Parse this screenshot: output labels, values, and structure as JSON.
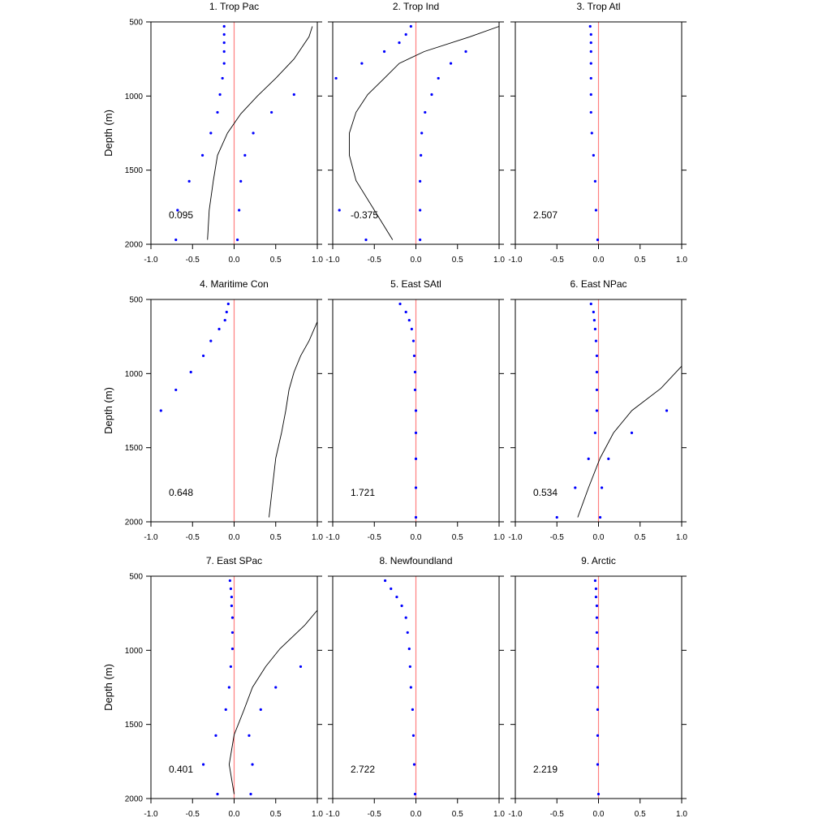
{
  "axes": {
    "ylabel": "Depth (m)",
    "ylim": [
      500,
      2000
    ],
    "xlim": [
      -1.0,
      1.0
    ],
    "y_ticks": [
      500,
      1000,
      1500,
      2000
    ],
    "x_ticks": [
      -1.0,
      -0.5,
      0.0,
      0.5,
      1.0
    ],
    "x_tick_labels": [
      "-1.0",
      "-0.5",
      "0.0",
      "0.5",
      "1.0"
    ],
    "y_inverted": true
  },
  "colors": {
    "points": "#0000ff",
    "curve": "#000000",
    "zero_line": "#ff8080"
  },
  "chart_data": [
    {
      "type": "scatter",
      "title": "1. Trop Pac",
      "annotation": "0.095",
      "points": [
        {
          "x": -0.12,
          "y": 530
        },
        {
          "x": -0.12,
          "y": 585
        },
        {
          "x": -0.12,
          "y": 640
        },
        {
          "x": -0.12,
          "y": 700
        },
        {
          "x": -0.12,
          "y": 780
        },
        {
          "x": -0.14,
          "y": 880
        },
        {
          "x": -0.17,
          "y": 990
        },
        {
          "x": -0.2,
          "y": 1110
        },
        {
          "x": -0.28,
          "y": 1250
        },
        {
          "x": -0.38,
          "y": 1400
        },
        {
          "x": -0.54,
          "y": 1575
        },
        {
          "x": -0.68,
          "y": 1770
        },
        {
          "x": -0.7,
          "y": 1970
        },
        {
          "x": 0.72,
          "y": 990
        },
        {
          "x": 0.45,
          "y": 1110
        },
        {
          "x": 0.23,
          "y": 1250
        },
        {
          "x": 0.13,
          "y": 1400
        },
        {
          "x": 0.08,
          "y": 1575
        },
        {
          "x": 0.06,
          "y": 1770
        },
        {
          "x": 0.04,
          "y": 1970
        }
      ],
      "curve": [
        {
          "x": 0.94,
          "y": 530
        },
        {
          "x": 0.9,
          "y": 600
        },
        {
          "x": 0.72,
          "y": 750
        },
        {
          "x": 0.5,
          "y": 880
        },
        {
          "x": 0.28,
          "y": 1000
        },
        {
          "x": 0.08,
          "y": 1120
        },
        {
          "x": -0.08,
          "y": 1250
        },
        {
          "x": -0.2,
          "y": 1400
        },
        {
          "x": -0.25,
          "y": 1570
        },
        {
          "x": -0.3,
          "y": 1770
        },
        {
          "x": -0.32,
          "y": 1970
        }
      ]
    },
    {
      "type": "scatter",
      "title": "2. Trop Ind",
      "annotation": "-0.375",
      "points": [
        {
          "x": -0.06,
          "y": 530
        },
        {
          "x": -0.12,
          "y": 585
        },
        {
          "x": -0.2,
          "y": 640
        },
        {
          "x": -0.38,
          "y": 700
        },
        {
          "x": -0.65,
          "y": 780
        },
        {
          "x": -0.96,
          "y": 880
        },
        {
          "x": -0.92,
          "y": 1770
        },
        {
          "x": -0.6,
          "y": 1970
        },
        {
          "x": 0.6,
          "y": 700
        },
        {
          "x": 0.42,
          "y": 780
        },
        {
          "x": 0.27,
          "y": 880
        },
        {
          "x": 0.19,
          "y": 990
        },
        {
          "x": 0.11,
          "y": 1110
        },
        {
          "x": 0.07,
          "y": 1250
        },
        {
          "x": 0.06,
          "y": 1400
        },
        {
          "x": 0.05,
          "y": 1575
        },
        {
          "x": 0.05,
          "y": 1770
        },
        {
          "x": 0.05,
          "y": 1970
        }
      ],
      "curve": [
        {
          "x": 1.0,
          "y": 530
        },
        {
          "x": 0.65,
          "y": 600
        },
        {
          "x": 0.1,
          "y": 700
        },
        {
          "x": -0.2,
          "y": 780
        },
        {
          "x": -0.38,
          "y": 880
        },
        {
          "x": -0.58,
          "y": 990
        },
        {
          "x": -0.72,
          "y": 1110
        },
        {
          "x": -0.8,
          "y": 1250
        },
        {
          "x": -0.8,
          "y": 1400
        },
        {
          "x": -0.72,
          "y": 1570
        },
        {
          "x": -0.5,
          "y": 1770
        },
        {
          "x": -0.28,
          "y": 1970
        }
      ]
    },
    {
      "type": "scatter",
      "title": "3. Trop Atl",
      "annotation": "2.507",
      "points": [
        {
          "x": -0.1,
          "y": 530
        },
        {
          "x": -0.09,
          "y": 585
        },
        {
          "x": -0.09,
          "y": 640
        },
        {
          "x": -0.09,
          "y": 700
        },
        {
          "x": -0.09,
          "y": 780
        },
        {
          "x": -0.09,
          "y": 880
        },
        {
          "x": -0.09,
          "y": 990
        },
        {
          "x": -0.09,
          "y": 1110
        },
        {
          "x": -0.08,
          "y": 1250
        },
        {
          "x": -0.06,
          "y": 1400
        },
        {
          "x": -0.04,
          "y": 1575
        },
        {
          "x": -0.03,
          "y": 1770
        },
        {
          "x": -0.01,
          "y": 1970
        }
      ],
      "curve": []
    },
    {
      "type": "scatter",
      "title": "4. Maritime Con",
      "annotation": "0.648",
      "points": [
        {
          "x": -0.07,
          "y": 530
        },
        {
          "x": -0.09,
          "y": 585
        },
        {
          "x": -0.11,
          "y": 640
        },
        {
          "x": -0.18,
          "y": 700
        },
        {
          "x": -0.28,
          "y": 780
        },
        {
          "x": -0.37,
          "y": 880
        },
        {
          "x": -0.52,
          "y": 990
        },
        {
          "x": -0.7,
          "y": 1110
        },
        {
          "x": -0.88,
          "y": 1250
        }
      ],
      "curve": [
        {
          "x": 1.0,
          "y": 650
        },
        {
          "x": 0.9,
          "y": 780
        },
        {
          "x": 0.8,
          "y": 880
        },
        {
          "x": 0.72,
          "y": 990
        },
        {
          "x": 0.66,
          "y": 1110
        },
        {
          "x": 0.62,
          "y": 1250
        },
        {
          "x": 0.57,
          "y": 1400
        },
        {
          "x": 0.5,
          "y": 1570
        },
        {
          "x": 0.46,
          "y": 1770
        },
        {
          "x": 0.42,
          "y": 1970
        }
      ]
    },
    {
      "type": "scatter",
      "title": "5. East SAtl",
      "annotation": "1.721",
      "points": [
        {
          "x": -0.19,
          "y": 530
        },
        {
          "x": -0.12,
          "y": 585
        },
        {
          "x": -0.08,
          "y": 640
        },
        {
          "x": -0.05,
          "y": 700
        },
        {
          "x": -0.03,
          "y": 780
        },
        {
          "x": -0.02,
          "y": 880
        },
        {
          "x": -0.01,
          "y": 990
        },
        {
          "x": -0.01,
          "y": 1110
        },
        {
          "x": 0.0,
          "y": 1250
        },
        {
          "x": 0.0,
          "y": 1400
        },
        {
          "x": 0.0,
          "y": 1575
        },
        {
          "x": 0.0,
          "y": 1770
        },
        {
          "x": 0.0,
          "y": 1970
        }
      ],
      "curve": []
    },
    {
      "type": "scatter",
      "title": "6. East NPac",
      "annotation": "0.534",
      "points": [
        {
          "x": -0.09,
          "y": 530
        },
        {
          "x": -0.06,
          "y": 585
        },
        {
          "x": -0.05,
          "y": 640
        },
        {
          "x": -0.04,
          "y": 700
        },
        {
          "x": -0.03,
          "y": 780
        },
        {
          "x": -0.02,
          "y": 880
        },
        {
          "x": -0.02,
          "y": 990
        },
        {
          "x": -0.02,
          "y": 1110
        },
        {
          "x": -0.02,
          "y": 1250
        },
        {
          "x": -0.04,
          "y": 1400
        },
        {
          "x": -0.12,
          "y": 1575
        },
        {
          "x": -0.28,
          "y": 1770
        },
        {
          "x": -0.5,
          "y": 1970
        },
        {
          "x": 0.82,
          "y": 1250
        },
        {
          "x": 0.4,
          "y": 1400
        },
        {
          "x": 0.12,
          "y": 1575
        },
        {
          "x": 0.04,
          "y": 1770
        },
        {
          "x": 0.02,
          "y": 1970
        }
      ],
      "curve": [
        {
          "x": 1.0,
          "y": 950
        },
        {
          "x": 0.75,
          "y": 1100
        },
        {
          "x": 0.4,
          "y": 1250
        },
        {
          "x": 0.18,
          "y": 1400
        },
        {
          "x": 0.02,
          "y": 1570
        },
        {
          "x": -0.12,
          "y": 1770
        },
        {
          "x": -0.25,
          "y": 1970
        }
      ]
    },
    {
      "type": "scatter",
      "title": "7. East SPac",
      "annotation": "0.401",
      "points": [
        {
          "x": -0.05,
          "y": 530
        },
        {
          "x": -0.04,
          "y": 585
        },
        {
          "x": -0.03,
          "y": 640
        },
        {
          "x": -0.03,
          "y": 700
        },
        {
          "x": -0.02,
          "y": 780
        },
        {
          "x": -0.02,
          "y": 880
        },
        {
          "x": -0.02,
          "y": 990
        },
        {
          "x": -0.04,
          "y": 1110
        },
        {
          "x": -0.06,
          "y": 1250
        },
        {
          "x": -0.1,
          "y": 1400
        },
        {
          "x": -0.22,
          "y": 1575
        },
        {
          "x": -0.37,
          "y": 1770
        },
        {
          "x": -0.2,
          "y": 1970
        },
        {
          "x": 0.8,
          "y": 1110
        },
        {
          "x": 0.5,
          "y": 1250
        },
        {
          "x": 0.32,
          "y": 1400
        },
        {
          "x": 0.18,
          "y": 1575
        },
        {
          "x": 0.22,
          "y": 1770
        },
        {
          "x": 0.2,
          "y": 1970
        }
      ],
      "curve": [
        {
          "x": 1.0,
          "y": 730
        },
        {
          "x": 0.85,
          "y": 830
        },
        {
          "x": 0.55,
          "y": 990
        },
        {
          "x": 0.38,
          "y": 1110
        },
        {
          "x": 0.22,
          "y": 1250
        },
        {
          "x": 0.12,
          "y": 1400
        },
        {
          "x": 0.0,
          "y": 1570
        },
        {
          "x": -0.06,
          "y": 1770
        },
        {
          "x": 0.0,
          "y": 1970
        }
      ]
    },
    {
      "type": "scatter",
      "title": "8. Newfoundland",
      "annotation": "2.722",
      "points": [
        {
          "x": -0.37,
          "y": 530
        },
        {
          "x": -0.3,
          "y": 585
        },
        {
          "x": -0.23,
          "y": 640
        },
        {
          "x": -0.17,
          "y": 700
        },
        {
          "x": -0.12,
          "y": 780
        },
        {
          "x": -0.1,
          "y": 880
        },
        {
          "x": -0.08,
          "y": 990
        },
        {
          "x": -0.07,
          "y": 1110
        },
        {
          "x": -0.06,
          "y": 1250
        },
        {
          "x": -0.04,
          "y": 1400
        },
        {
          "x": -0.03,
          "y": 1575
        },
        {
          "x": -0.02,
          "y": 1770
        },
        {
          "x": -0.01,
          "y": 1970
        }
      ],
      "curve": []
    },
    {
      "type": "scatter",
      "title": "9. Arctic",
      "annotation": "2.219",
      "points": [
        {
          "x": -0.04,
          "y": 530
        },
        {
          "x": -0.03,
          "y": 585
        },
        {
          "x": -0.03,
          "y": 640
        },
        {
          "x": -0.02,
          "y": 700
        },
        {
          "x": -0.02,
          "y": 780
        },
        {
          "x": -0.02,
          "y": 880
        },
        {
          "x": -0.01,
          "y": 990
        },
        {
          "x": -0.01,
          "y": 1110
        },
        {
          "x": -0.01,
          "y": 1250
        },
        {
          "x": -0.01,
          "y": 1400
        },
        {
          "x": -0.01,
          "y": 1575
        },
        {
          "x": -0.01,
          "y": 1770
        },
        {
          "x": 0.0,
          "y": 1970
        }
      ],
      "curve": []
    }
  ]
}
